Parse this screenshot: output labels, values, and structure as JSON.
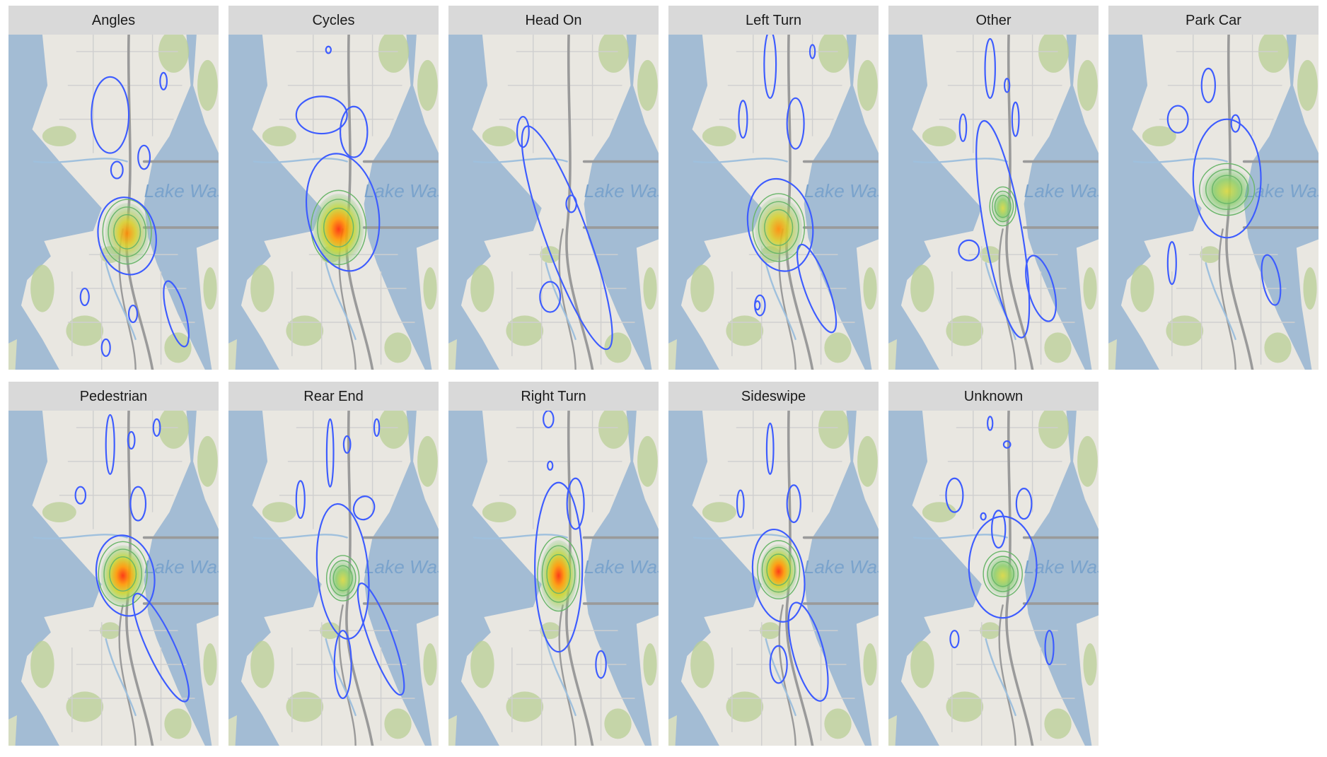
{
  "facets": [
    "Angles",
    "Cycles",
    "Head On",
    "Left Turn",
    "Other",
    "Park Car",
    "Pedestrian",
    "Rear End",
    "Right Turn",
    "Sideswipe",
    "Unknown"
  ],
  "map_label": "Lake Washing"
}
